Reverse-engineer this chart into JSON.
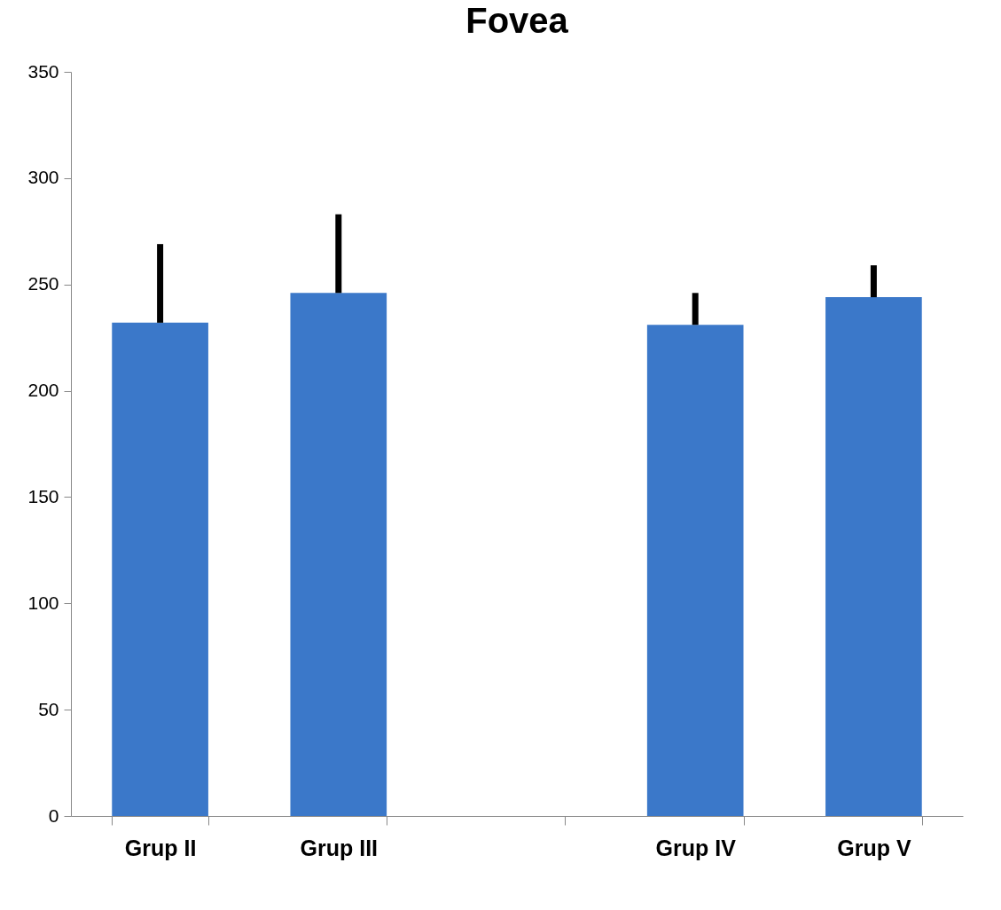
{
  "chart_data": {
    "type": "bar",
    "title": "Fovea",
    "categories": [
      "Grup II",
      "Grup III",
      null,
      "Grup IV",
      "Grup V"
    ],
    "values": [
      232,
      246,
      null,
      231,
      244
    ],
    "errors": [
      [
        232,
        269
      ],
      [
        246,
        283
      ],
      null,
      [
        231,
        246
      ],
      [
        244,
        259
      ]
    ],
    "color": "#3b78c9",
    "ylim": [
      0,
      350
    ],
    "yticks": [
      0,
      50,
      100,
      150,
      200,
      250,
      300,
      350
    ],
    "grid": false
  }
}
